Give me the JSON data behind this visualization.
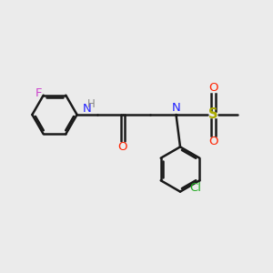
{
  "background_color": "#ebebeb",
  "figsize": [
    3.0,
    3.0
  ],
  "dpi": 100,
  "bond_color": "#1a1a1a",
  "bond_lw": 1.8,
  "colors": {
    "F": "#cc44cc",
    "N": "#2222ff",
    "O": "#ff2200",
    "S": "#aaaa00",
    "Cl": "#22aa22",
    "C": "#1a1a1a",
    "H": "#888888"
  },
  "font_size": 9.5,
  "font_size_small": 8.5
}
